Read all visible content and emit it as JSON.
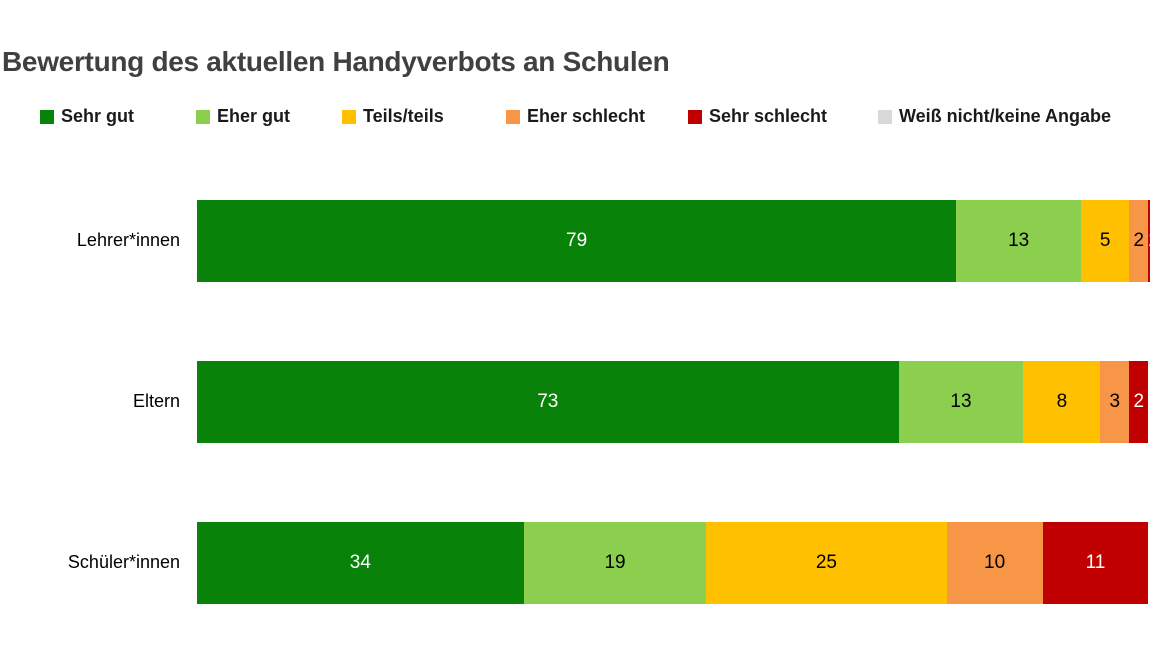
{
  "title": "Bewertung des aktuellen Handyverbots an Schulen",
  "colors": {
    "title_text": "#404040",
    "sehr_gut": "#088208",
    "eher_gut": "#8CCE4E",
    "teils_teils": "#FFC000",
    "eher_schlecht": "#F79646",
    "sehr_schlecht": "#C00000",
    "weiss_nicht": "#D9D9D9"
  },
  "legend": [
    {
      "label": "Sehr gut",
      "color": "#088208"
    },
    {
      "label": "Eher gut",
      "color": "#8CCE4E"
    },
    {
      "label": "Teils/teils",
      "color": "#FFC000"
    },
    {
      "label": "Eher schlecht",
      "color": "#F79646"
    },
    {
      "label": "Sehr schlecht",
      "color": "#C00000"
    },
    {
      "label": "Weiß nicht/keine Angabe",
      "color": "#D9D9D9"
    }
  ],
  "chart_data": {
    "type": "bar",
    "orientation": "horizontal",
    "stacked": true,
    "title": "Bewertung des aktuellen Handyverbots an Schulen",
    "categories": [
      "Lehrer*innen",
      "Eltern",
      "Schüler*innen"
    ],
    "series": [
      {
        "name": "Sehr gut",
        "color": "#088208",
        "label_color": "#ffffff",
        "values": [
          79,
          73,
          34
        ]
      },
      {
        "name": "Eher gut",
        "color": "#8CCE4E",
        "label_color": "#000000",
        "values": [
          13,
          13,
          19
        ]
      },
      {
        "name": "Teils/teils",
        "color": "#FFC000",
        "label_color": "#000000",
        "values": [
          5,
          8,
          25
        ]
      },
      {
        "name": "Eher schlecht",
        "color": "#F79646",
        "label_color": "#000000",
        "values": [
          2,
          3,
          10
        ]
      },
      {
        "name": "Sehr schlecht",
        "color": "#C00000",
        "label_color": "#ffffff",
        "values": [
          1,
          2,
          11
        ]
      }
    ],
    "xlim": [
      0,
      100
    ],
    "data_labels": true,
    "grid": false,
    "legend_position": "top",
    "note_right_edge_clipped": true
  }
}
